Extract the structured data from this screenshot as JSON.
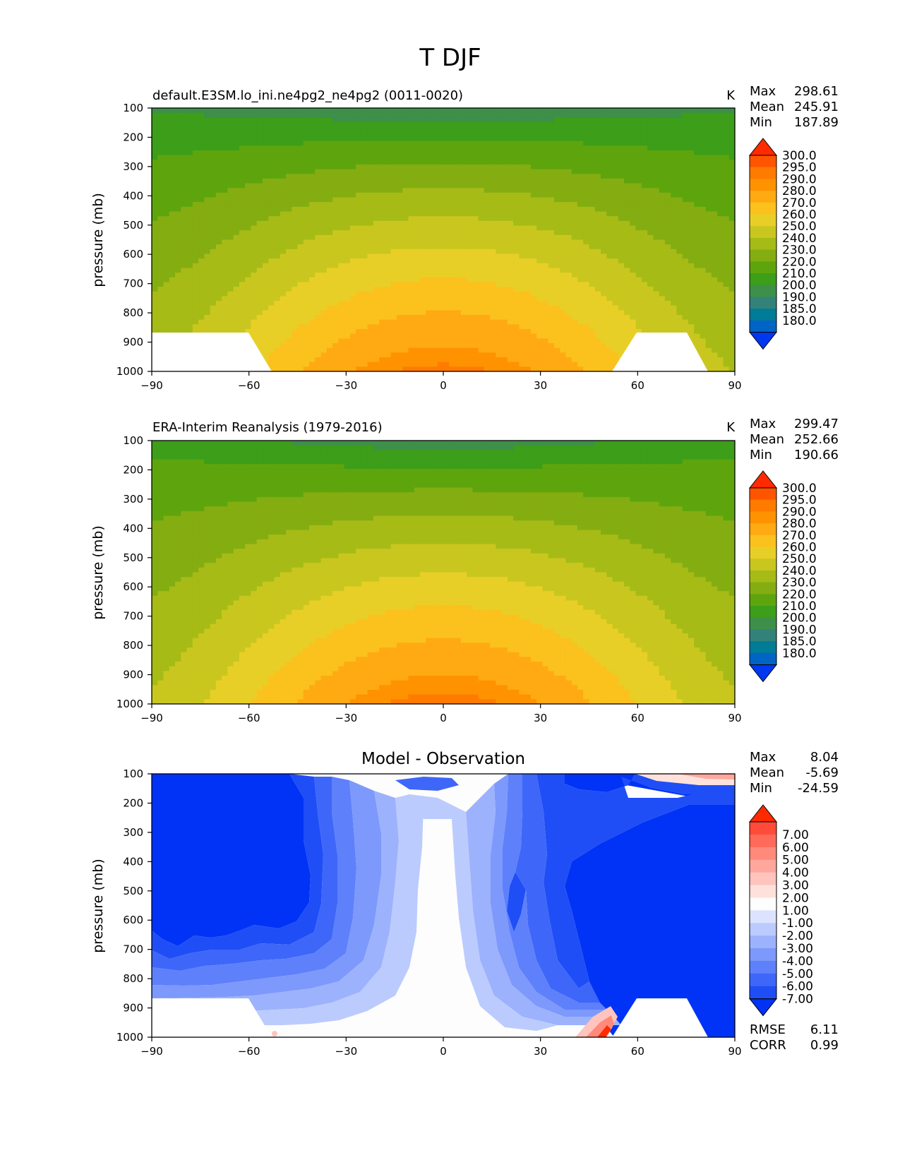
{
  "figure": {
    "title": "T DJF",
    "ylabel": "pressure (mb)",
    "x_ticks": [
      "−90",
      "−60",
      "−30",
      "0",
      "30",
      "60",
      "90"
    ],
    "y_ticks": [
      "100",
      "200",
      "300",
      "400",
      "500",
      "600",
      "700",
      "800",
      "900",
      "1000"
    ]
  },
  "chart_data": [
    {
      "type": "heatmap",
      "id": "model",
      "title_left": "default.E3SM.lo_ini.ne4pg2_ne4pg2 (0011-0020)",
      "units": "K",
      "xlim": [
        -90,
        90
      ],
      "ylim": [
        1000,
        100
      ],
      "stats": [
        {
          "label": "Max",
          "value": "298.61"
        },
        {
          "label": "Mean",
          "value": "245.91"
        },
        {
          "label": "Min",
          "value": "187.89"
        }
      ],
      "colorbar": {
        "labels": [
          "300.0",
          "295.0",
          "290.0",
          "280.0",
          "270.0",
          "260.0",
          "250.0",
          "240.0",
          "230.0",
          "220.0",
          "210.0",
          "200.0",
          "190.0",
          "185.0",
          "180.0"
        ],
        "colors": [
          "#ff2a00",
          "#ff5500",
          "#ff7b00",
          "#ff9200",
          "#ffaa12",
          "#fbc11d",
          "#e8cf27",
          "#c9c71f",
          "#a6bb16",
          "#84ad11",
          "#5ea50d",
          "#3c9e19",
          "#3e8f49",
          "#33827a",
          "#007c97",
          "#0064c6",
          "#0037f0"
        ]
      },
      "profile_fit": {
        "equator": 297,
        "pole_1000": 250,
        "pole_100": 208,
        "trop_100": 200
      }
    },
    {
      "type": "heatmap",
      "id": "obs",
      "title_left": "ERA-Interim Reanalysis (1979-2016)",
      "units": "K",
      "xlim": [
        -90,
        90
      ],
      "ylim": [
        1000,
        100
      ],
      "stats": [
        {
          "label": "Max",
          "value": "299.47"
        },
        {
          "label": "Mean",
          "value": "252.66"
        },
        {
          "label": "Min",
          "value": "190.66"
        }
      ],
      "colorbar": {
        "labels": [
          "300.0",
          "295.0",
          "290.0",
          "280.0",
          "270.0",
          "260.0",
          "250.0",
          "240.0",
          "230.0",
          "220.0",
          "210.0",
          "200.0",
          "190.0",
          "185.0",
          "180.0"
        ],
        "colors": [
          "#ff2a00",
          "#ff5500",
          "#ff7b00",
          "#ff9200",
          "#ffaa12",
          "#fbc11d",
          "#e8cf27",
          "#c9c71f",
          "#a6bb16",
          "#84ad11",
          "#5ea50d",
          "#3c9e19",
          "#3e8f49",
          "#33827a",
          "#007c97",
          "#0064c6",
          "#0037f0"
        ]
      },
      "profile_fit": {
        "equator": 298,
        "pole_1000": 252,
        "pole_100": 215,
        "trop_100": 203
      }
    },
    {
      "type": "heatmap",
      "id": "diff",
      "title_center": "Model - Observation",
      "xlim": [
        -90,
        90
      ],
      "ylim": [
        1000,
        100
      ],
      "stats": [
        {
          "label": "Max",
          "value": "8.04"
        },
        {
          "label": "Mean",
          "value": "-5.69"
        },
        {
          "label": "Min",
          "value": "-24.59"
        }
      ],
      "metrics": [
        {
          "label": "RMSE",
          "value": "6.11"
        },
        {
          "label": "CORR",
          "value": "0.99"
        }
      ],
      "colorbar": {
        "labels": [
          "7.00",
          "6.00",
          "5.00",
          "4.00",
          "3.00",
          "2.00",
          "1.00",
          "-1.00",
          "-2.00",
          "-3.00",
          "-4.00",
          "-5.00",
          "-6.00",
          "-7.00"
        ],
        "colors": [
          "#ff2a00",
          "#ff4b3a",
          "#ff6a5a",
          "#ff8a7c",
          "#ffa79c",
          "#ffc4bd",
          "#ffe1dc",
          "#fdfdfd",
          "#dce3fe",
          "#bccbfe",
          "#9db2fd",
          "#7d99fb",
          "#5e80fb",
          "#3e67f9",
          "#1f4ef7",
          "#0033f5"
        ]
      }
    }
  ]
}
